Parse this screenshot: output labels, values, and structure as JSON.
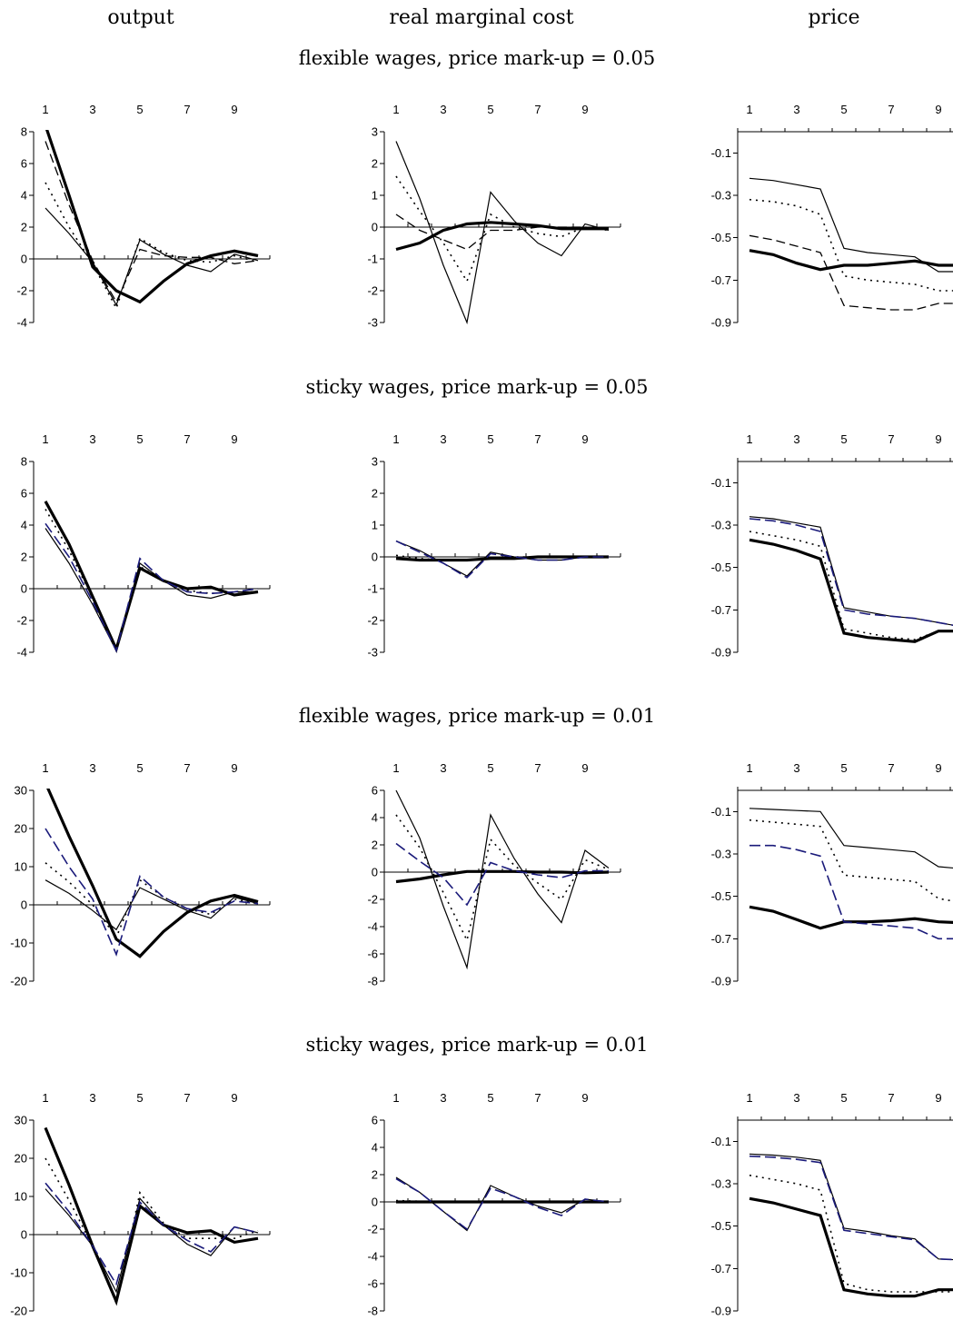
{
  "column_titles": [
    "output",
    "real marginal cost",
    "price"
  ],
  "row_titles": [
    "flexible wages, price mark-up = 0.05",
    "sticky wages, price mark-up = 0.05",
    "flexible wages, price mark-up = 0.01",
    "sticky wages, price mark-up = 0.01"
  ],
  "styles": [
    {
      "stroke": "#000000",
      "width": 3.2,
      "dash": ""
    },
    {
      "stroke": "#000000",
      "width": 1.2,
      "dash": ""
    },
    {
      "stroke": "#000000",
      "width": 1.6,
      "dash": "2,5"
    },
    {
      "stroke": "#000000",
      "width": 1.3,
      "dash": "10,5"
    },
    {
      "stroke": "#1a1a7a",
      "width": 1.6,
      "dash": "12,5"
    }
  ],
  "chart_data": [
    {
      "row": 0,
      "col": 0,
      "type": "line",
      "xticks": [
        "1",
        "3",
        "5",
        "7",
        "9"
      ],
      "ylim": [
        -4,
        8
      ],
      "yticks": [
        "8",
        "6",
        "4",
        "2",
        "0",
        "-2",
        "-4"
      ],
      "series": [
        {
          "style": 0,
          "values": [
            8.4,
            4.0,
            -0.5,
            -2.0,
            -2.7,
            -1.4,
            -0.3,
            0.2,
            0.5,
            0.2
          ]
        },
        {
          "style": 1,
          "values": [
            3.2,
            1.6,
            -0.2,
            -2.9,
            1.2,
            0.3,
            -0.4,
            -0.8,
            0.3,
            -0.1
          ]
        },
        {
          "style": 2,
          "values": [
            4.8,
            2.0,
            -0.3,
            -3.1,
            1.3,
            0.4,
            -0.1,
            -0.2,
            0.2,
            -0.2
          ]
        },
        {
          "style": 3,
          "values": [
            7.4,
            3.4,
            -0.1,
            -2.7,
            0.6,
            0.2,
            0.1,
            0.1,
            -0.3,
            -0.1
          ]
        }
      ]
    },
    {
      "row": 0,
      "col": 1,
      "type": "line",
      "xticks": [
        "1",
        "3",
        "5",
        "7",
        "9"
      ],
      "ylim": [
        -3,
        3
      ],
      "yticks": [
        "3",
        "2",
        "1",
        "0",
        "-1",
        "-2",
        "-3"
      ],
      "series": [
        {
          "style": 0,
          "values": [
            -0.7,
            -0.5,
            -0.1,
            0.1,
            0.15,
            0.1,
            0.05,
            -0.05,
            -0.05,
            -0.05
          ]
        },
        {
          "style": 1,
          "values": [
            2.7,
            0.9,
            -1.2,
            -3.0,
            1.1,
            0.2,
            -0.5,
            -0.9,
            0.1,
            -0.1
          ]
        },
        {
          "style": 2,
          "values": [
            1.6,
            0.5,
            -0.5,
            -1.7,
            0.4,
            0.0,
            -0.2,
            -0.3,
            0.0,
            -0.1
          ]
        },
        {
          "style": 3,
          "values": [
            0.4,
            -0.1,
            -0.4,
            -0.7,
            -0.1,
            -0.1,
            0.0,
            0.0,
            0.0,
            -0.05
          ]
        }
      ]
    },
    {
      "row": 0,
      "col": 2,
      "type": "line",
      "xticks": [
        "1",
        "3",
        "5",
        "7",
        "9"
      ],
      "ylim": [
        -0.9,
        0.0
      ],
      "yticks": [
        "-0.1",
        "-0.3",
        "-0.5",
        "-0.7",
        "-0.9"
      ],
      "series": [
        {
          "style": 0,
          "values": [
            -0.56,
            -0.58,
            -0.62,
            -0.65,
            -0.63,
            -0.63,
            -0.62,
            -0.61,
            -0.63,
            -0.63
          ]
        },
        {
          "style": 1,
          "values": [
            -0.22,
            -0.23,
            -0.25,
            -0.27,
            -0.55,
            -0.57,
            -0.58,
            -0.59,
            -0.66,
            -0.66
          ]
        },
        {
          "style": 2,
          "values": [
            -0.32,
            -0.33,
            -0.35,
            -0.39,
            -0.68,
            -0.7,
            -0.71,
            -0.72,
            -0.75,
            -0.75
          ]
        },
        {
          "style": 3,
          "values": [
            -0.49,
            -0.51,
            -0.54,
            -0.57,
            -0.82,
            -0.83,
            -0.84,
            -0.84,
            -0.81,
            -0.81
          ]
        }
      ]
    },
    {
      "row": 1,
      "col": 0,
      "type": "line",
      "xticks": [
        "1",
        "3",
        "5",
        "7",
        "9"
      ],
      "ylim": [
        -4,
        8
      ],
      "yticks": [
        "8",
        "6",
        "4",
        "2",
        "0",
        "-2",
        "-4"
      ],
      "series": [
        {
          "style": 0,
          "values": [
            5.5,
            2.8,
            -0.5,
            -3.8,
            1.3,
            0.5,
            0.0,
            0.1,
            -0.4,
            -0.2
          ]
        },
        {
          "style": 1,
          "values": [
            3.8,
            1.6,
            -1.0,
            -3.9,
            1.6,
            0.5,
            -0.4,
            -0.6,
            -0.2,
            -0.2
          ]
        },
        {
          "style": 2,
          "values": [
            5.0,
            2.4,
            -0.6,
            -3.9,
            1.4,
            0.5,
            -0.1,
            -0.3,
            -0.2,
            -0.2
          ]
        },
        {
          "style": 4,
          "values": [
            4.1,
            2.0,
            -0.8,
            -3.9,
            1.9,
            0.5,
            -0.2,
            -0.3,
            -0.2,
            0.0
          ]
        }
      ]
    },
    {
      "row": 1,
      "col": 1,
      "type": "line",
      "xticks": [
        "1",
        "3",
        "5",
        "7",
        "9"
      ],
      "ylim": [
        -3,
        3
      ],
      "yticks": [
        "3",
        "2",
        "1",
        "0",
        "-1",
        "-2",
        "-3"
      ],
      "series": [
        {
          "style": 0,
          "values": [
            -0.05,
            -0.1,
            -0.1,
            -0.1,
            -0.05,
            -0.05,
            0.0,
            0.0,
            0.0,
            0.0
          ]
        },
        {
          "style": 1,
          "values": [
            0.5,
            0.2,
            -0.2,
            -0.6,
            0.15,
            0.0,
            -0.1,
            -0.1,
            0.0,
            0.0
          ]
        },
        {
          "style": 2,
          "values": [
            0.05,
            -0.05,
            -0.1,
            -0.1,
            -0.05,
            0.0,
            0.0,
            0.0,
            0.0,
            0.0
          ]
        },
        {
          "style": 4,
          "values": [
            0.5,
            0.15,
            -0.2,
            -0.65,
            0.1,
            0.0,
            -0.1,
            -0.1,
            0.0,
            0.0
          ]
        }
      ]
    },
    {
      "row": 1,
      "col": 2,
      "type": "line",
      "xticks": [
        "1",
        "3",
        "5",
        "7",
        "9"
      ],
      "ylim": [
        -0.9,
        0.0
      ],
      "yticks": [
        "-0.1",
        "-0.3",
        "-0.5",
        "-0.7",
        "-0.9"
      ],
      "series": [
        {
          "style": 0,
          "values": [
            -0.37,
            -0.39,
            -0.42,
            -0.46,
            -0.81,
            -0.83,
            -0.84,
            -0.85,
            -0.8,
            -0.8
          ]
        },
        {
          "style": 1,
          "values": [
            -0.26,
            -0.27,
            -0.29,
            -0.31,
            -0.69,
            -0.71,
            -0.73,
            -0.74,
            -0.76,
            -0.78
          ]
        },
        {
          "style": 2,
          "values": [
            -0.33,
            -0.35,
            -0.37,
            -0.4,
            -0.79,
            -0.81,
            -0.83,
            -0.84,
            -0.8,
            -0.8
          ]
        },
        {
          "style": 4,
          "values": [
            -0.27,
            -0.28,
            -0.3,
            -0.33,
            -0.7,
            -0.72,
            -0.73,
            -0.74,
            -0.76,
            -0.78
          ]
        }
      ]
    },
    {
      "row": 2,
      "col": 0,
      "type": "line",
      "xticks": [
        "1",
        "3",
        "5",
        "7",
        "9"
      ],
      "ylim": [
        -20,
        30
      ],
      "yticks": [
        "30",
        "20",
        "10",
        "0",
        "-10",
        "-20"
      ],
      "series": [
        {
          "style": 0,
          "values": [
            32,
            18,
            5,
            -9,
            -13.5,
            -7,
            -2,
            1,
            2.5,
            0.8
          ]
        },
        {
          "style": 1,
          "values": [
            6.5,
            3,
            -1.5,
            -6.5,
            4.5,
            1.5,
            -1.5,
            -3.5,
            2.0,
            0.3
          ]
        },
        {
          "style": 2,
          "values": [
            11,
            6,
            0,
            -8.5,
            6.5,
            2.0,
            -1.0,
            -2.5,
            1.5,
            0.3
          ]
        },
        {
          "style": 4,
          "values": [
            20,
            10,
            1.5,
            -13,
            7.5,
            2.0,
            -1.0,
            -2.0,
            1.0,
            0.3
          ]
        }
      ]
    },
    {
      "row": 2,
      "col": 1,
      "type": "line",
      "xticks": [
        "1",
        "3",
        "5",
        "7",
        "9"
      ],
      "ylim": [
        -8,
        6
      ],
      "yticks": [
        "6",
        "4",
        "2",
        "0",
        "-2",
        "-4",
        "-6",
        "-8"
      ],
      "series": [
        {
          "style": 0,
          "values": [
            -0.7,
            -0.5,
            -0.2,
            0.05,
            0.05,
            0.05,
            0.0,
            0.0,
            -0.05,
            0.0
          ]
        },
        {
          "style": 1,
          "values": [
            6.0,
            2.5,
            -2.5,
            -7.0,
            4.2,
            1.0,
            -1.6,
            -3.7,
            1.6,
            0.3
          ]
        },
        {
          "style": 2,
          "values": [
            4.2,
            1.8,
            -1.5,
            -5.0,
            2.4,
            0.5,
            -0.8,
            -2.0,
            0.9,
            0.2
          ]
        },
        {
          "style": 4,
          "values": [
            2.1,
            0.8,
            -0.4,
            -2.4,
            0.7,
            0.1,
            -0.2,
            -0.4,
            0.1,
            0.1
          ]
        }
      ]
    },
    {
      "row": 2,
      "col": 2,
      "type": "line",
      "xticks": [
        "1",
        "3",
        "5",
        "7",
        "9"
      ],
      "ylim": [
        -0.9,
        0.0
      ],
      "yticks": [
        "-0.1",
        "-0.3",
        "-0.5",
        "-0.7",
        "-0.9"
      ],
      "series": [
        {
          "style": 0,
          "values": [
            -0.55,
            -0.57,
            -0.61,
            -0.65,
            -0.62,
            -0.62,
            -0.615,
            -0.605,
            -0.62,
            -0.625
          ]
        },
        {
          "style": 1,
          "values": [
            -0.085,
            -0.09,
            -0.095,
            -0.1,
            -0.26,
            -0.27,
            -0.28,
            -0.29,
            -0.36,
            -0.37
          ]
        },
        {
          "style": 2,
          "values": [
            -0.14,
            -0.15,
            -0.16,
            -0.17,
            -0.4,
            -0.41,
            -0.42,
            -0.43,
            -0.51,
            -0.53
          ]
        },
        {
          "style": 4,
          "values": [
            -0.26,
            -0.26,
            -0.28,
            -0.31,
            -0.62,
            -0.63,
            -0.64,
            -0.65,
            -0.7,
            -0.7
          ]
        }
      ]
    },
    {
      "row": 3,
      "col": 0,
      "type": "line",
      "xticks": [
        "1",
        "3",
        "5",
        "7",
        "9"
      ],
      "ylim": [
        -20,
        30
      ],
      "yticks": [
        "30",
        "20",
        "10",
        "0",
        "-10",
        "-20"
      ],
      "series": [
        {
          "style": 0,
          "values": [
            28,
            13,
            -3,
            -17.5,
            7.5,
            2.5,
            0.5,
            1.0,
            -2.0,
            -1.0
          ]
        },
        {
          "style": 1,
          "values": [
            12,
            5,
            -3,
            -15,
            9.5,
            2.5,
            -2.5,
            -5.5,
            2.0,
            0.5
          ]
        },
        {
          "style": 2,
          "values": [
            20,
            9,
            -3,
            -18,
            11,
            3,
            -1,
            -1,
            -1,
            1.0
          ]
        },
        {
          "style": 4,
          "values": [
            13.5,
            6,
            -3,
            -13,
            8.5,
            2.5,
            -1.5,
            -4.5,
            2.0,
            0.5
          ]
        }
      ]
    },
    {
      "row": 3,
      "col": 1,
      "type": "line",
      "xticks": [
        "1",
        "3",
        "5",
        "7",
        "9"
      ],
      "ylim": [
        -8,
        6
      ],
      "yticks": [
        "6",
        "4",
        "2",
        "0",
        "-2",
        "-4",
        "-6",
        "-8"
      ],
      "series": [
        {
          "style": 0,
          "values": [
            0.0,
            0.0,
            0.0,
            0.0,
            0.0,
            0.0,
            0.0,
            0.0,
            0.0,
            0.0
          ]
        },
        {
          "style": 1,
          "values": [
            1.8,
            0.7,
            -0.7,
            -2.1,
            1.2,
            0.4,
            -0.3,
            -0.8,
            0.2,
            0.0
          ]
        },
        {
          "style": 2,
          "values": [
            0.1,
            0.05,
            0.0,
            0.0,
            0.0,
            0.0,
            0.0,
            0.0,
            0.0,
            0.0
          ]
        },
        {
          "style": 4,
          "values": [
            1.7,
            0.7,
            -0.7,
            -2.0,
            1.0,
            0.4,
            -0.4,
            -1.0,
            0.2,
            0.0
          ]
        }
      ]
    },
    {
      "row": 3,
      "col": 2,
      "type": "line",
      "xticks": [
        "1",
        "3",
        "5",
        "7",
        "9"
      ],
      "ylim": [
        -0.9,
        0.0
      ],
      "yticks": [
        "-0.1",
        "-0.3",
        "-0.5",
        "-0.7",
        "-0.9"
      ],
      "series": [
        {
          "style": 0,
          "values": [
            -0.37,
            -0.39,
            -0.42,
            -0.45,
            -0.8,
            -0.82,
            -0.83,
            -0.83,
            -0.8,
            -0.8
          ]
        },
        {
          "style": 1,
          "values": [
            -0.16,
            -0.165,
            -0.175,
            -0.19,
            -0.51,
            -0.525,
            -0.545,
            -0.56,
            -0.655,
            -0.66
          ]
        },
        {
          "style": 2,
          "values": [
            -0.26,
            -0.28,
            -0.3,
            -0.33,
            -0.77,
            -0.8,
            -0.81,
            -0.81,
            -0.81,
            -0.81
          ]
        },
        {
          "style": 4,
          "values": [
            -0.17,
            -0.175,
            -0.185,
            -0.2,
            -0.52,
            -0.535,
            -0.55,
            -0.565,
            -0.655,
            -0.66
          ]
        }
      ]
    }
  ]
}
